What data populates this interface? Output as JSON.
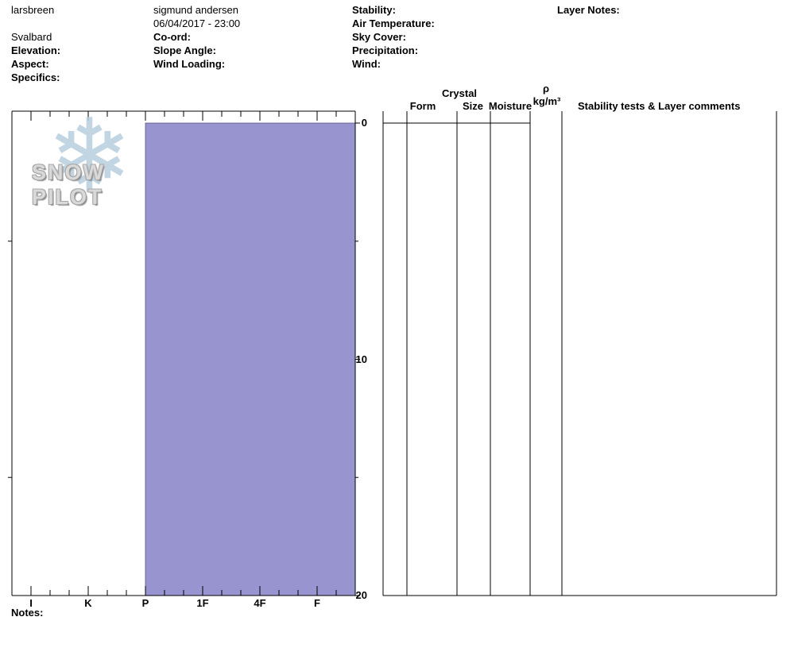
{
  "header": {
    "site": "larsbreen",
    "region": "Svalbard",
    "elevation_label": "Elevation:",
    "aspect_label": "Aspect:",
    "specifics_label": "Specifics:",
    "observer": "sigmund andersen",
    "datetime": "06/04/2017 - 23:00",
    "coord_label": "Co-ord:",
    "slope_angle_label": "Slope Angle:",
    "wind_loading_label": "Wind Loading:",
    "stability_label": "Stability:",
    "air_temperature_label": "Air Temperature:",
    "sky_cover_label": "Sky Cover:",
    "precipitation_label": "Precipitation:",
    "wind_label": "Wind:",
    "layer_notes_label": "Layer Notes:"
  },
  "logo": {
    "text": "SNOW PILOT",
    "snowflake_icon": "snowflake-icon",
    "flake_color": "#b7cedf"
  },
  "table": {
    "crystal_header": "Crystal",
    "form_header": "Form",
    "size_header": "Size",
    "moisture_header": "Moisture",
    "rho_symbol": "ρ",
    "rho_units": "kg/m³",
    "comments_header": "Stability tests & Layer comments"
  },
  "notes_label": "Notes:",
  "chart_data": {
    "type": "bar",
    "orientation": "horizontal",
    "title": "Snow pit hardness profile",
    "hardness_categories": [
      "I",
      "K",
      "P",
      "1F",
      "4F",
      "F"
    ],
    "depth_range": [
      0,
      20
    ],
    "depth_ticks": [
      0,
      10,
      20
    ],
    "depth_minor_ticks": [
      5,
      15
    ],
    "layers": [
      {
        "top_cm": 0,
        "bottom_cm": 20,
        "hardness": "P"
      }
    ],
    "fill_color": "#9894d0",
    "layer_stroke_color": "#55557f",
    "grid": false,
    "legend": false
  }
}
